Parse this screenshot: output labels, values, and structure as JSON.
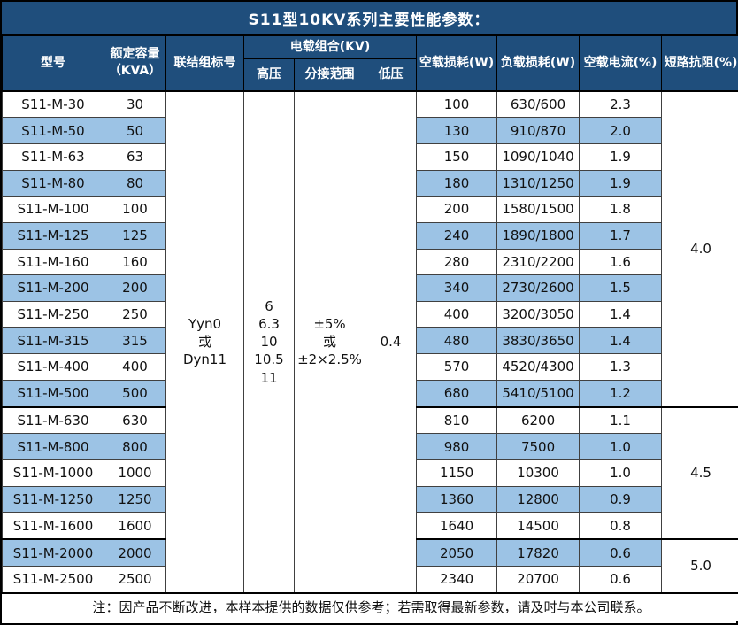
{
  "colors": {
    "header_bg": "#1F4E7C",
    "stripe_bg": "#9CC3E5",
    "grid": "#404040",
    "frame": "#000000",
    "header_text": "#FFFFFF",
    "body_text": "#111111"
  },
  "title": "S11型10KV系列主要性能参数：",
  "header": {
    "model": "型号",
    "capacity": "额定容量\n（KVA）",
    "connection": "联结组标号",
    "voltage_combo": "电载组合(KV)",
    "hv": "高压",
    "tap_range": "分接范围",
    "lv": "低压",
    "no_load_loss": "空载损耗(W)",
    "load_loss": "负载损耗(W)",
    "no_load_current": "空载电流(%)",
    "impedance": "短路抗阻(%)"
  },
  "merged": {
    "connection": "Yyn0\n或\nDyn11",
    "hv": "6\n6.3\n10\n10.5\n11",
    "tap_range": "±5%\n或\n±2×2.5%",
    "lv": "0.4"
  },
  "rows": [
    {
      "model": "S11-M-30",
      "capacity": "30",
      "no_load_loss": "100",
      "load_loss": "630/600",
      "no_load_current": "2.3"
    },
    {
      "model": "S11-M-50",
      "capacity": "50",
      "no_load_loss": "130",
      "load_loss": "910/870",
      "no_load_current": "2.0"
    },
    {
      "model": "S11-M-63",
      "capacity": "63",
      "no_load_loss": "150",
      "load_loss": "1090/1040",
      "no_load_current": "1.9"
    },
    {
      "model": "S11-M-80",
      "capacity": "80",
      "no_load_loss": "180",
      "load_loss": "1310/1250",
      "no_load_current": "1.9"
    },
    {
      "model": "S11-M-100",
      "capacity": "100",
      "no_load_loss": "200",
      "load_loss": "1580/1500",
      "no_load_current": "1.8"
    },
    {
      "model": "S11-M-125",
      "capacity": "125",
      "no_load_loss": "240",
      "load_loss": "1890/1800",
      "no_load_current": "1.7"
    },
    {
      "model": "S11-M-160",
      "capacity": "160",
      "no_load_loss": "280",
      "load_loss": "2310/2200",
      "no_load_current": "1.6"
    },
    {
      "model": "S11-M-200",
      "capacity": "200",
      "no_load_loss": "340",
      "load_loss": "2730/2600",
      "no_load_current": "1.5"
    },
    {
      "model": "S11-M-250",
      "capacity": "250",
      "no_load_loss": "400",
      "load_loss": "3200/3050",
      "no_load_current": "1.4"
    },
    {
      "model": "S11-M-315",
      "capacity": "315",
      "no_load_loss": "480",
      "load_loss": "3830/3650",
      "no_load_current": "1.4"
    },
    {
      "model": "S11-M-400",
      "capacity": "400",
      "no_load_loss": "570",
      "load_loss": "4520/4300",
      "no_load_current": "1.3"
    },
    {
      "model": "S11-M-500",
      "capacity": "500",
      "no_load_loss": "680",
      "load_loss": "5410/5100",
      "no_load_current": "1.2"
    },
    {
      "model": "S11-M-630",
      "capacity": "630",
      "no_load_loss": "810",
      "load_loss": "6200",
      "no_load_current": "1.1"
    },
    {
      "model": "S11-M-800",
      "capacity": "800",
      "no_load_loss": "980",
      "load_loss": "7500",
      "no_load_current": "1.0"
    },
    {
      "model": "S11-M-1000",
      "capacity": "1000",
      "no_load_loss": "1150",
      "load_loss": "10300",
      "no_load_current": "1.0"
    },
    {
      "model": "S11-M-1250",
      "capacity": "1250",
      "no_load_loss": "1360",
      "load_loss": "12800",
      "no_load_current": "0.9"
    },
    {
      "model": "S11-M-1600",
      "capacity": "1600",
      "no_load_loss": "1640",
      "load_loss": "14500",
      "no_load_current": "0.8"
    },
    {
      "model": "S11-M-2000",
      "capacity": "2000",
      "no_load_loss": "2050",
      "load_loss": "17820",
      "no_load_current": "0.6"
    },
    {
      "model": "S11-M-2500",
      "capacity": "2500",
      "no_load_loss": "2340",
      "load_loss": "20700",
      "no_load_current": "0.6"
    }
  ],
  "impedance_groups": [
    {
      "value": "4.0",
      "span": 12
    },
    {
      "value": "4.5",
      "span": 5
    },
    {
      "value": "5.0",
      "span": 2
    }
  ],
  "note": "注：因产品不断改进，本样本提供的数据仅供参考；若需取得最新参数，请及时与本公司联系。"
}
